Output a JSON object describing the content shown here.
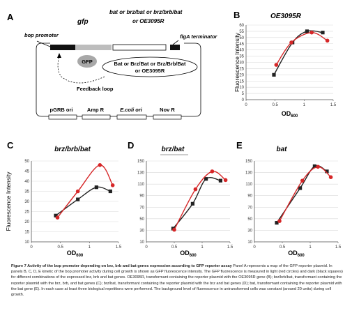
{
  "panel_a": {
    "letter": "A",
    "gfp_label": "gfp",
    "top_label_1": "bat or brz/bat or brz/brb/bat",
    "top_label_2": "or OE3095R",
    "bop_promoter": "bop promoter",
    "flga_terminator": "flgA terminator",
    "gfp_blob": "GFP",
    "oval_line_1": "Bat or Brz/Bat or Brz/Brb/Bat",
    "oval_line_2": "or OE3095R",
    "feedback": "Feedback loop",
    "elements": [
      "pGRB ori",
      "Amp R",
      "E.coli ori",
      "Nov R"
    ]
  },
  "chart_data": [
    {
      "panel": "B",
      "type": "line",
      "title": "OE3095R",
      "xlabel": "OD600",
      "ylabel": "Fluorescence Intensity",
      "xlim": [
        0,
        1.5
      ],
      "ylim": [
        0,
        60
      ],
      "xticks": [
        "0",
        "0.5",
        "1",
        "1.5"
      ],
      "yticks": [
        "0",
        "5",
        "10",
        "15",
        "20",
        "25",
        "30",
        "35",
        "40",
        "45",
        "50",
        "55",
        "60"
      ],
      "series": [
        {
          "color": "#222222",
          "marker": "square",
          "x": [
            0.48,
            0.8,
            1.05,
            1.32
          ],
          "y": [
            20,
            46,
            55,
            54
          ]
        },
        {
          "color": "#d62728",
          "marker": "circle",
          "x": [
            0.52,
            0.78,
            1.13,
            1.4
          ],
          "y": [
            28,
            46,
            54,
            47.5
          ]
        }
      ]
    },
    {
      "panel": "C",
      "type": "line",
      "title": "brz/brb/bat",
      "xlabel": "OD600",
      "ylabel": "Fluorescence Intensity",
      "xlim": [
        0,
        1.5
      ],
      "ylim": [
        10,
        50
      ],
      "xticks": [
        "0",
        "0.5",
        "1",
        "1.5"
      ],
      "yticks": [
        "10",
        "15",
        "20",
        "25",
        "30",
        "35",
        "40",
        "45",
        "50"
      ],
      "series": [
        {
          "color": "#222222",
          "marker": "square",
          "x": [
            0.42,
            0.8,
            1.12,
            1.36
          ],
          "y": [
            23,
            31,
            37,
            35
          ]
        },
        {
          "color": "#d62728",
          "marker": "circle",
          "x": [
            0.45,
            0.8,
            1.18,
            1.4
          ],
          "y": [
            22,
            35,
            48,
            38
          ]
        }
      ]
    },
    {
      "panel": "D",
      "type": "line",
      "title": "brz/bat",
      "xlabel": "OD600",
      "ylabel": "",
      "xlim": [
        0,
        1.5
      ],
      "ylim": [
        10,
        150
      ],
      "xticks": [
        "0",
        "0.5",
        "1",
        "1.5"
      ],
      "yticks": [
        "10",
        "30",
        "50",
        "70",
        "90",
        "110",
        "130",
        "150"
      ],
      "series": [
        {
          "color": "#222222",
          "marker": "square",
          "x": [
            0.48,
            0.83,
            1.07,
            1.33
          ],
          "y": [
            33,
            76,
            119,
            116
          ]
        },
        {
          "color": "#d62728",
          "marker": "circle",
          "x": [
            0.5,
            0.88,
            1.18,
            1.42
          ],
          "y": [
            31,
            101,
            132,
            117
          ]
        }
      ]
    },
    {
      "panel": "E",
      "type": "line",
      "title": "bat",
      "xlabel": "OD600",
      "ylabel": "",
      "xlim": [
        0,
        1.5
      ],
      "ylim": [
        10,
        150
      ],
      "xticks": [
        "0",
        "0.5",
        "1",
        "1.5"
      ],
      "yticks": [
        "10",
        "30",
        "50",
        "70",
        "90",
        "110",
        "130",
        "150"
      ],
      "series": [
        {
          "color": "#222222",
          "marker": "square",
          "x": [
            0.4,
            0.82,
            1.08,
            1.3
          ],
          "y": [
            43,
            103,
            141,
            132
          ]
        },
        {
          "color": "#d62728",
          "marker": "circle",
          "x": [
            0.45,
            0.86,
            1.14,
            1.37
          ],
          "y": [
            46,
            116,
            140,
            122
          ]
        }
      ]
    }
  ],
  "caption": {
    "title": "Figure 7 Activity of the bop promoter depending on brz, brb and bat genes expression according to GFP reporter assay",
    "body": "Panel A represents a map of the GFP reporter plasmid. In panels B, C, D, E kinetic of the bop promoter activity during cell growth is shown as GFP fluorescence intensity. The GFP fluorescence is measured in light (red circles) and dark (black squares) for different combinations of the expressed brz, brb and bat genes. OE3095R, transformant containing the reporter plasmid with the OE3095R gene (B); brz/brb/bat, transformant containing the reporter plasmid with the brz, brb, and bat genes (C); brz/bat, transformant containing the reporter plasmid with the brz and bat genes (D); bat, transformant containing the reporter plasmid with the bat gene (E). In each case at least three biological repetitions were performed. The background level of fluorescence in untransformed cells was constant (around 20 units) during cell growth."
  }
}
